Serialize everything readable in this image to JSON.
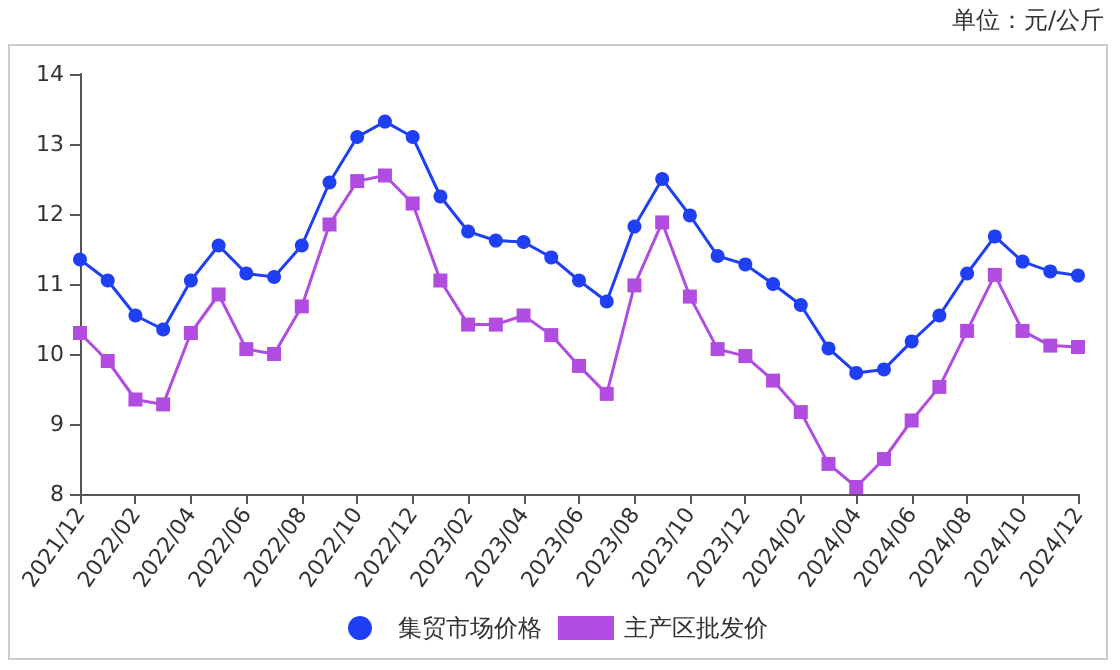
{
  "chart_data": {
    "type": "line",
    "annotations": [
      "单位：元/公斤"
    ],
    "categories": [
      "2021/12",
      null,
      "2022/02",
      null,
      "2022/04",
      null,
      "2022/06",
      null,
      "2022/08",
      null,
      "2022/10",
      null,
      "2022/12",
      null,
      "2023/02",
      null,
      "2023/04",
      null,
      "2023/06",
      null,
      "2023/08",
      null,
      "2023/10",
      null,
      "2023/12",
      null,
      "2024/02",
      null,
      "2024/04",
      null,
      "2024/06",
      null,
      "2024/08",
      null,
      "2024/10",
      null,
      "2024/12"
    ],
    "series": [
      {
        "name": "集贸市场价格",
        "color": "#1f3ff5",
        "marker": "circle",
        "values": [
          11.35,
          11.05,
          10.55,
          10.35,
          11.05,
          11.55,
          11.15,
          11.1,
          11.55,
          12.45,
          13.1,
          13.32,
          13.1,
          12.25,
          11.75,
          11.62,
          11.6,
          11.38,
          11.05,
          10.75,
          11.82,
          12.5,
          11.98,
          11.4,
          11.28,
          11.0,
          10.7,
          10.08,
          9.73,
          9.78,
          10.18,
          10.55,
          11.15,
          11.68,
          11.32,
          11.18,
          11.12
        ]
      },
      {
        "name": "主产区批发价",
        "color": "#b04de0",
        "marker": "square",
        "values": [
          10.3,
          9.9,
          9.35,
          9.28,
          10.3,
          10.85,
          10.07,
          10.0,
          10.68,
          11.85,
          12.47,
          12.55,
          12.15,
          11.05,
          10.42,
          10.42,
          10.55,
          10.27,
          9.83,
          9.43,
          10.98,
          11.88,
          10.82,
          10.07,
          9.97,
          9.62,
          9.17,
          8.43,
          8.1,
          8.5,
          9.05,
          9.53,
          10.33,
          11.13,
          10.33,
          10.12,
          10.1
        ]
      }
    ],
    "ylim": [
      8,
      14
    ],
    "yticks": [
      8,
      9,
      10,
      11,
      12,
      13,
      14
    ],
    "grid": false,
    "legend": "bottom"
  }
}
